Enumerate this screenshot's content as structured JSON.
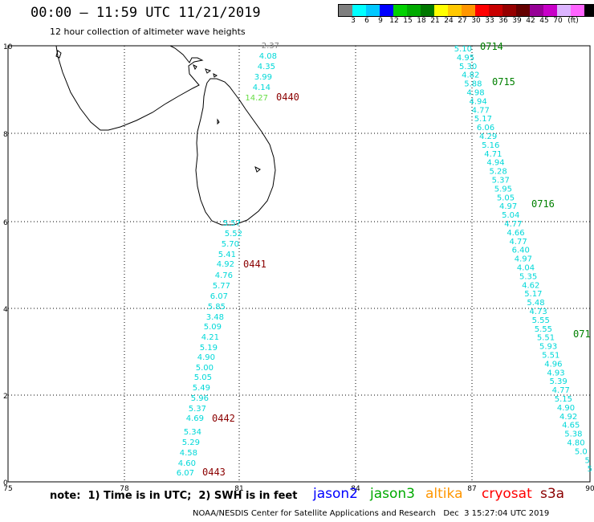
{
  "header": {
    "title": "00:00 – 11:59 UTC 11/21/2019",
    "subtitle": "12 hour collection of altimeter wave heights"
  },
  "colorbar": {
    "colors": [
      "#7f7f7f",
      "#00ffff",
      "#00c8ff",
      "#0000ff",
      "#00d200",
      "#00aa00",
      "#007800",
      "#ffff00",
      "#ffc800",
      "#ff9600",
      "#ff0000",
      "#c80000",
      "#960000",
      "#640000",
      "#960096",
      "#c800c8",
      "#dcb4ff",
      "#ff64ff",
      "#000000"
    ],
    "labels": [
      "3",
      "6",
      "9",
      "12",
      "15",
      "18",
      "21",
      "24",
      "27",
      "30",
      "33",
      "36",
      "39",
      "42",
      "45",
      "70",
      "(ft)"
    ]
  },
  "axes": {
    "x_ticks": [
      "75",
      "78",
      "81",
      "84",
      "87",
      "90"
    ],
    "y_ticks": [
      "0",
      "2",
      "4",
      "6",
      "8",
      "10"
    ]
  },
  "pass_labels": [
    {
      "text": "0440",
      "color": "#8b0000"
    },
    {
      "text": "0441",
      "color": "#8b0000"
    },
    {
      "text": "0442",
      "color": "#8b0000"
    },
    {
      "text": "0443",
      "color": "#8b0000"
    },
    {
      "text": "0714",
      "color": "#008000"
    },
    {
      "text": "0715",
      "color": "#008000"
    },
    {
      "text": "0716",
      "color": "#008000"
    },
    {
      "text": "071",
      "color": "#008000"
    }
  ],
  "track1_values": [
    {
      "v": "2.37",
      "c": "#808080"
    },
    {
      "v": "4.08",
      "c": "#00d8d8"
    },
    {
      "v": "4.35",
      "c": "#00d8d8"
    },
    {
      "v": "3.99",
      "c": "#00d8d8"
    },
    {
      "v": "4.14",
      "c": "#00d8d8"
    },
    {
      "v": "14.27",
      "c": "#66dd44"
    },
    {
      "v": "5.57",
      "c": "#00d8d8"
    },
    {
      "v": "5.52",
      "c": "#00d8d8"
    },
    {
      "v": "5.70",
      "c": "#00d8d8"
    },
    {
      "v": "5.41",
      "c": "#00d8d8"
    },
    {
      "v": "4.92",
      "c": "#00d8d8"
    },
    {
      "v": "4.76",
      "c": "#00d8d8"
    },
    {
      "v": "5.77",
      "c": "#00d8d8"
    },
    {
      "v": "6.07",
      "c": "#00d8d8"
    },
    {
      "v": "5.85",
      "c": "#00d8d8"
    },
    {
      "v": "3.48",
      "c": "#00d8d8"
    },
    {
      "v": "5.09",
      "c": "#00d8d8"
    },
    {
      "v": "4.21",
      "c": "#00d8d8"
    },
    {
      "v": "5.19",
      "c": "#00d8d8"
    },
    {
      "v": "4.90",
      "c": "#00d8d8"
    },
    {
      "v": "5.00",
      "c": "#00d8d8"
    },
    {
      "v": "5.05",
      "c": "#00d8d8"
    },
    {
      "v": "5.49",
      "c": "#00d8d8"
    },
    {
      "v": "5.96",
      "c": "#00d8d8"
    },
    {
      "v": "5.37",
      "c": "#00d8d8"
    },
    {
      "v": "4.69",
      "c": "#00d8d8"
    },
    {
      "v": "5.34",
      "c": "#00d8d8"
    },
    {
      "v": "5.29",
      "c": "#00d8d8"
    },
    {
      "v": "4.58",
      "c": "#00d8d8"
    },
    {
      "v": "4.60",
      "c": "#00d8d8"
    },
    {
      "v": "6.07",
      "c": "#00d8d8"
    }
  ],
  "track2_values": [
    "5.10",
    "4.95",
    "5.30",
    "4.82",
    "5.88",
    "4.98",
    "4.94",
    "4.77",
    "5.17",
    "6.06",
    "4.29",
    "5.16",
    "4.71",
    "4.94",
    "5.28",
    "5.37",
    "5.95",
    "5.05",
    "4.97",
    "5.04",
    "4.77",
    "4.66",
    "4.77",
    "6.40",
    "4.97",
    "4.04",
    "5.35",
    "4.62",
    "5.17",
    "5.48",
    "4.73",
    "5.55",
    "5.55",
    "5.51",
    "5.93",
    "5.51",
    "4.96",
    "4.93",
    "5.39",
    "4.77",
    "5.15",
    "4.90",
    "4.92",
    "4.65",
    "5.38",
    "4.80",
    "5.0",
    "5",
    "5"
  ],
  "track2_color": "#00d8d8",
  "note": "note:  1) Time is in UTC;  2) SWH is in feet",
  "missions": [
    {
      "name": "jason2",
      "color": "#0000ff"
    },
    {
      "name": "jason3",
      "color": "#00aa00"
    },
    {
      "name": "altika",
      "color": "#ff9600"
    },
    {
      "name": "cryosat",
      "color": "#ff0000"
    },
    {
      "name": "s3a",
      "color": "#8b0000"
    }
  ],
  "credit": "NOAA/NESDIS Center for Satellite Applications and Research   Dec  3 15:27:04 UTC 2019"
}
